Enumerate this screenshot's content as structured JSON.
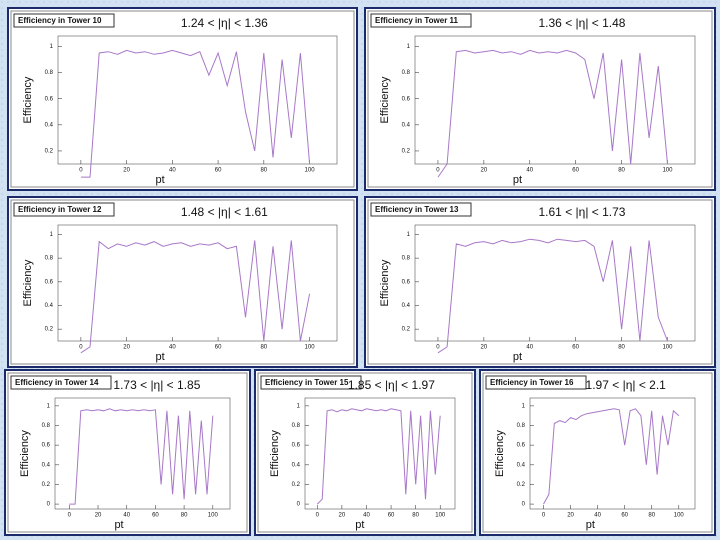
{
  "chart_data": [
    {
      "type": "line",
      "title": "Efficiency in Tower 10",
      "annotation": "1.24 < |η| < 1.36",
      "xlabel": "pt",
      "ylabel": "Efficiency",
      "x": [
        0,
        4,
        8,
        12,
        16,
        20,
        24,
        28,
        32,
        36,
        40,
        44,
        48,
        52,
        56,
        60,
        64,
        68,
        72,
        76,
        80,
        84,
        88,
        92,
        96,
        100
      ],
      "values": [
        0,
        0,
        0.95,
        0.96,
        0.94,
        0.97,
        0.95,
        0.96,
        0.94,
        0.95,
        0.97,
        0.95,
        0.93,
        0.96,
        0.78,
        0.95,
        0.7,
        0.96,
        0.5,
        0.2,
        0.95,
        0.15,
        0.9,
        0.3,
        0.95,
        0.1
      ],
      "color": "#a878c8",
      "xlim": [
        -10,
        112
      ],
      "ylim": [
        0.1,
        1.08
      ],
      "xticks": [
        0,
        20,
        40,
        60,
        80,
        100
      ],
      "yticks": [
        0.2,
        0.4,
        0.6,
        0.8,
        1
      ]
    },
    {
      "type": "line",
      "title": "Efficiency in Tower 11",
      "annotation": "1.36 < |η| < 1.48",
      "xlabel": "pt",
      "ylabel": "Efficiency",
      "x": [
        0,
        4,
        8,
        12,
        16,
        20,
        24,
        28,
        32,
        36,
        40,
        44,
        48,
        52,
        56,
        60,
        64,
        68,
        72,
        76,
        80,
        84,
        88,
        92,
        96,
        100
      ],
      "values": [
        0,
        0.1,
        0.96,
        0.97,
        0.95,
        0.96,
        0.97,
        0.95,
        0.96,
        0.94,
        0.97,
        0.95,
        0.96,
        0.95,
        0.97,
        0.95,
        0.9,
        0.6,
        0.95,
        0.2,
        0.9,
        0.1,
        0.95,
        0.3,
        0.85,
        0.1
      ],
      "color": "#a878c8",
      "xlim": [
        -10,
        112
      ],
      "ylim": [
        0.1,
        1.08
      ],
      "xticks": [
        0,
        20,
        40,
        60,
        80,
        100
      ],
      "yticks": [
        0.2,
        0.4,
        0.6,
        0.8,
        1
      ]
    },
    {
      "type": "line",
      "title": "Efficiency in Tower 12",
      "annotation": "1.48 < |η| < 1.61",
      "xlabel": "pt",
      "ylabel": "Efficiency",
      "x": [
        0,
        4,
        8,
        12,
        16,
        20,
        24,
        28,
        32,
        36,
        40,
        44,
        48,
        52,
        56,
        60,
        64,
        68,
        72,
        76,
        80,
        84,
        88,
        92,
        96,
        100
      ],
      "values": [
        0,
        0.05,
        0.94,
        0.88,
        0.92,
        0.9,
        0.93,
        0.91,
        0.94,
        0.9,
        0.92,
        0.93,
        0.9,
        0.92,
        0.91,
        0.93,
        0.88,
        0.9,
        0.3,
        0.95,
        0.1,
        0.9,
        0.2,
        0.95,
        0.1,
        0.5
      ],
      "color": "#a878c8",
      "xlim": [
        -10,
        112
      ],
      "ylim": [
        0.1,
        1.08
      ],
      "xticks": [
        0,
        20,
        40,
        60,
        80,
        100
      ],
      "yticks": [
        0.2,
        0.4,
        0.6,
        0.8,
        1
      ]
    },
    {
      "type": "line",
      "title": "Efficiency in Tower 13",
      "annotation": "1.61 < |η| < 1.73",
      "xlabel": "pt",
      "ylabel": "Efficiency",
      "x": [
        0,
        4,
        8,
        12,
        16,
        20,
        24,
        28,
        32,
        36,
        40,
        44,
        48,
        52,
        56,
        60,
        64,
        68,
        72,
        76,
        80,
        84,
        88,
        92,
        96,
        100
      ],
      "values": [
        0,
        0.05,
        0.92,
        0.9,
        0.93,
        0.94,
        0.92,
        0.95,
        0.93,
        0.94,
        0.96,
        0.95,
        0.93,
        0.96,
        0.95,
        0.94,
        0.95,
        0.9,
        0.6,
        0.95,
        0.2,
        0.9,
        0.1,
        0.95,
        0.3,
        0.1
      ],
      "color": "#a878c8",
      "xlim": [
        -10,
        112
      ],
      "ylim": [
        0.1,
        1.08
      ],
      "xticks": [
        0,
        20,
        40,
        60,
        80,
        100
      ],
      "yticks": [
        0.2,
        0.4,
        0.6,
        0.8,
        1
      ]
    },
    {
      "type": "line",
      "title": "Efficiency in Tower 14",
      "annotation": "1.73 < |η| < 1.85",
      "xlabel": "pt",
      "ylabel": "Efficiency",
      "x": [
        0,
        4,
        8,
        12,
        16,
        20,
        24,
        28,
        32,
        36,
        40,
        44,
        48,
        52,
        56,
        60,
        64,
        68,
        72,
        76,
        80,
        84,
        88,
        92,
        96,
        100
      ],
      "values": [
        0,
        0,
        0.95,
        0.96,
        0.95,
        0.96,
        0.95,
        0.97,
        0.95,
        0.96,
        0.95,
        0.96,
        0.95,
        0.96,
        0.95,
        0.96,
        0.2,
        0.95,
        0.1,
        0.9,
        0.05,
        0.95,
        0.1,
        0.85,
        0.1,
        0.9
      ],
      "color": "#a878c8",
      "xlim": [
        -10,
        112
      ],
      "ylim": [
        -0.05,
        1.08
      ],
      "xticks": [
        0,
        20,
        40,
        60,
        80,
        100
      ],
      "yticks": [
        0,
        0.2,
        0.4,
        0.6,
        0.8,
        1
      ]
    },
    {
      "type": "line",
      "title": "Efficiency in Tower 15",
      "annotation": "1.85 < |η| < 1.97",
      "xlabel": "pt",
      "ylabel": "Efficiency",
      "x": [
        0,
        4,
        8,
        12,
        16,
        20,
        24,
        28,
        32,
        36,
        40,
        44,
        48,
        52,
        56,
        60,
        64,
        68,
        72,
        76,
        80,
        84,
        88,
        92,
        96,
        100
      ],
      "values": [
        0,
        0.05,
        0.95,
        0.96,
        0.94,
        0.96,
        0.95,
        0.97,
        0.96,
        0.95,
        0.97,
        0.96,
        0.95,
        0.96,
        0.95,
        0.97,
        0.96,
        0.95,
        0.1,
        0.95,
        0.2,
        0.9,
        0.05,
        0.95,
        0.3,
        0.9
      ],
      "color": "#a878c8",
      "xlim": [
        -10,
        112
      ],
      "ylim": [
        -0.05,
        1.08
      ],
      "xticks": [
        0,
        20,
        40,
        60,
        80,
        100
      ],
      "yticks": [
        0,
        0.2,
        0.4,
        0.6,
        0.8,
        1
      ]
    },
    {
      "type": "line",
      "title": "Efficiency in Tower 16",
      "annotation": "1.97 < |η| < 2.1",
      "xlabel": "pt",
      "ylabel": "Efficiency",
      "x": [
        0,
        4,
        8,
        12,
        16,
        20,
        24,
        28,
        32,
        36,
        40,
        44,
        48,
        52,
        56,
        60,
        64,
        68,
        72,
        76,
        80,
        84,
        88,
        92,
        96,
        100
      ],
      "values": [
        0,
        0.1,
        0.82,
        0.85,
        0.83,
        0.88,
        0.86,
        0.9,
        0.92,
        0.93,
        0.94,
        0.95,
        0.96,
        0.97,
        0.96,
        0.6,
        0.95,
        0.97,
        0.9,
        0.4,
        0.95,
        0.3,
        0.9,
        0.6,
        0.95,
        0.9
      ],
      "color": "#a878c8",
      "xlim": [
        -10,
        112
      ],
      "ylim": [
        -0.05,
        1.08
      ],
      "xticks": [
        0,
        20,
        40,
        60,
        80,
        100
      ],
      "yticks": [
        0,
        0.2,
        0.4,
        0.6,
        0.8,
        1
      ]
    }
  ]
}
